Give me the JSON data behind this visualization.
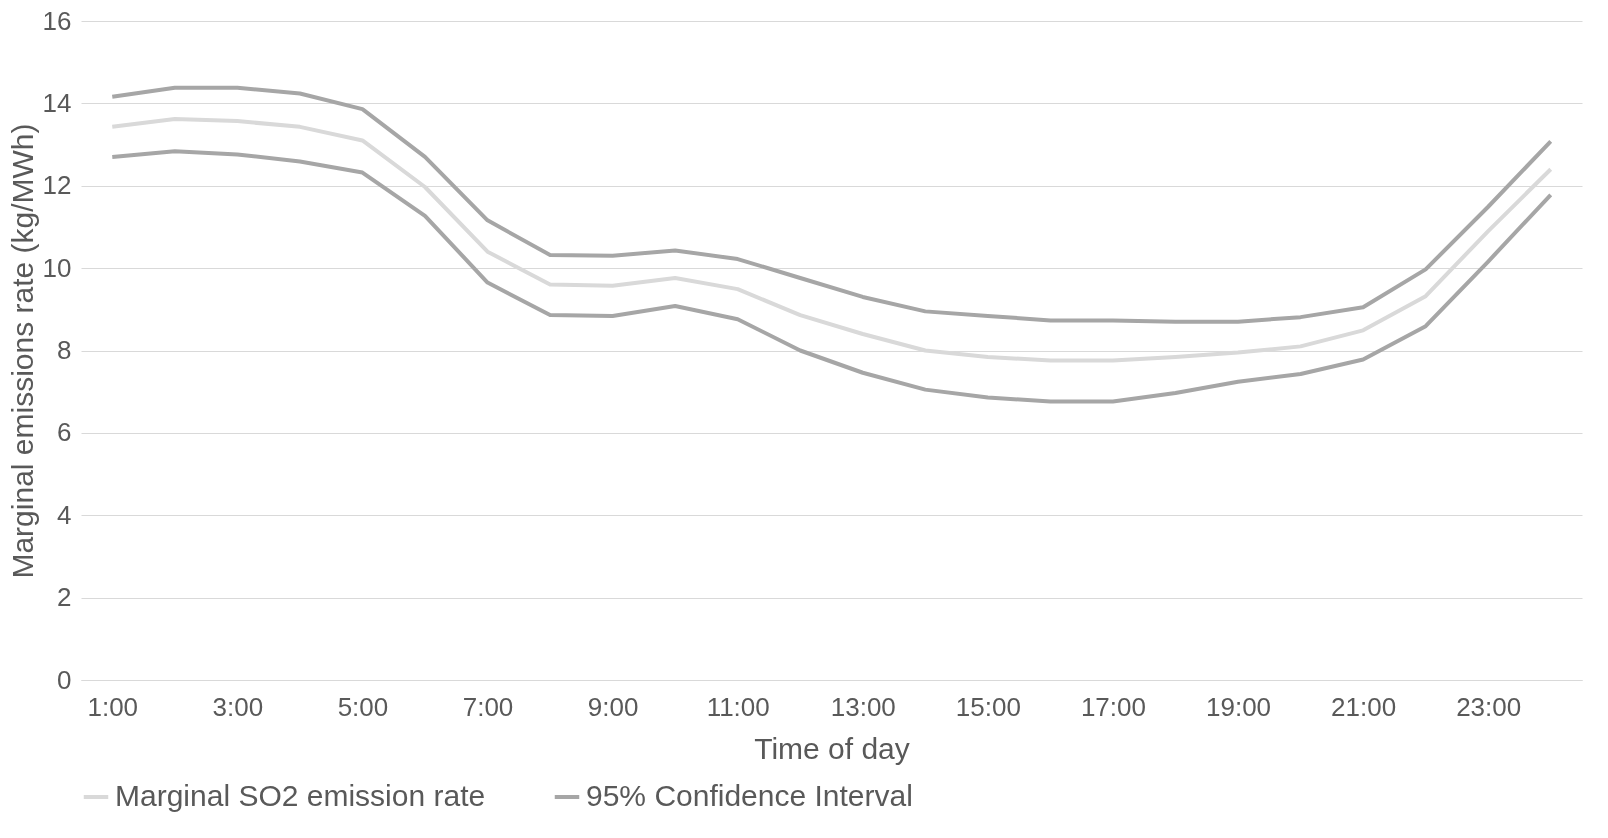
{
  "chart_data": {
    "type": "line",
    "xlabel": "Time of day",
    "ylabel": "Marginal emissions rate (kg/MWh)",
    "categories": [
      "1:00",
      null,
      "3:00",
      null,
      "5:00",
      null,
      "7:00",
      null,
      "9:00",
      null,
      "11:00",
      null,
      "13:00",
      null,
      "15:00",
      null,
      "17:00",
      null,
      "19:00",
      null,
      "21:00",
      null,
      "23:00",
      null
    ],
    "series": [
      {
        "name": "Marginal SO2 emission rate",
        "color": "#d9d9d9",
        "values": [
          13.43,
          13.62,
          13.57,
          13.43,
          13.1,
          11.97,
          10.4,
          9.6,
          9.57,
          9.76,
          9.49,
          8.86,
          8.4,
          8.0,
          7.84,
          7.76,
          7.76,
          7.84,
          7.95,
          8.1,
          8.49,
          9.32,
          10.9,
          12.4
        ]
      },
      {
        "name": "95% Confidence Interval",
        "color": "#a6a6a6",
        "values": [
          14.16,
          14.38,
          14.38,
          14.24,
          13.86,
          12.7,
          11.16,
          10.32,
          10.3,
          10.43,
          10.22,
          9.76,
          9.3,
          8.95,
          8.84,
          8.73,
          8.73,
          8.7,
          8.7,
          8.81,
          9.05,
          9.97,
          11.49,
          13.08
        ]
      },
      {
        "color": "#a6a6a6",
        "values": [
          12.7,
          12.84,
          12.76,
          12.59,
          12.32,
          11.27,
          9.65,
          8.86,
          8.84,
          9.08,
          8.76,
          8.0,
          7.46,
          7.05,
          6.86,
          6.76,
          6.76,
          6.97,
          7.24,
          7.43,
          7.78,
          8.59,
          10.16,
          11.78
        ]
      }
    ],
    "ylim": [
      0,
      16
    ],
    "yticks": [
      0,
      2,
      4,
      6,
      8,
      10,
      12,
      14,
      16
    ],
    "grid": "y",
    "legend": "bottom",
    "marker": "none",
    "line_style": "solid"
  }
}
